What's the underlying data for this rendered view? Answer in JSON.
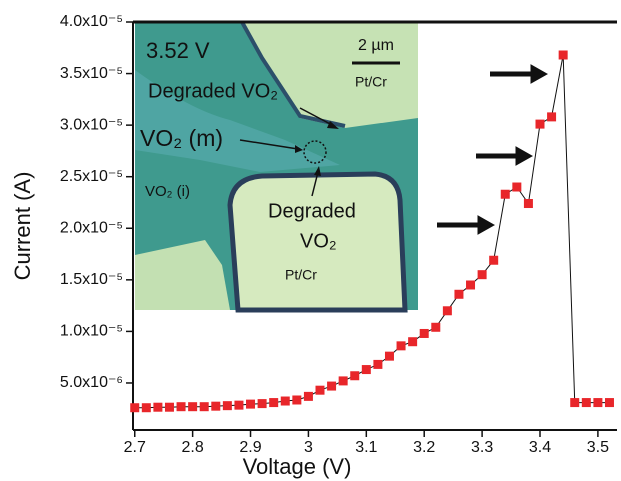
{
  "chart_data": {
    "type": "scatter",
    "x_label": "Voltage (V)",
    "y_label": "Current (A)",
    "x": [
      2.7,
      2.72,
      2.74,
      2.76,
      2.78,
      2.8,
      2.82,
      2.84,
      2.86,
      2.88,
      2.9,
      2.92,
      2.94,
      2.96,
      2.98,
      3.0,
      3.02,
      3.04,
      3.06,
      3.08,
      3.1,
      3.12,
      3.14,
      3.16,
      3.18,
      3.2,
      3.22,
      3.24,
      3.26,
      3.28,
      3.3,
      3.32,
      3.34,
      3.36,
      3.38,
      3.4,
      3.42,
      3.44,
      3.46,
      3.48,
      3.5,
      3.52
    ],
    "values": [
      2.6e-06,
      2.6e-06,
      2.65e-06,
      2.65e-06,
      2.7e-06,
      2.7e-06,
      2.7e-06,
      2.75e-06,
      2.8e-06,
      2.85e-06,
      2.95e-06,
      3e-06,
      3.1e-06,
      3.25e-06,
      3.35e-06,
      3.7e-06,
      4.3e-06,
      4.7e-06,
      5.2e-06,
      5.7e-06,
      6.3e-06,
      6.8e-06,
      7.6e-06,
      8.6e-06,
      9e-06,
      9.8e-06,
      1.04e-05,
      1.2e-05,
      1.36e-05,
      1.45e-05,
      1.55e-05,
      1.69e-05,
      2.33e-05,
      2.4e-05,
      2.24e-05,
      3.01e-05,
      3.08e-05,
      3.68e-05,
      3.1e-06,
      3.1e-06,
      3.1e-06,
      3.1e-06
    ],
    "color": "#e8262a",
    "line_color": "#111111",
    "xlim": [
      2.697,
      3.533
    ],
    "ylim": [
      4.4e-07,
      4e-05
    ],
    "xticks": [
      2.7,
      2.8,
      2.9,
      3.0,
      3.1,
      3.2,
      3.3,
      3.4,
      3.5
    ],
    "yticks": [
      {
        "value": 5e-06,
        "label": "5.0x10⁻⁶"
      },
      {
        "value": 1e-05,
        "label": "1.0x10⁻⁵"
      },
      {
        "value": 1.5e-05,
        "label": "1.5x10⁻⁵"
      },
      {
        "value": 2e-05,
        "label": "2.0x10⁻⁵"
      },
      {
        "value": 2.5e-05,
        "label": "2.5x10⁻⁵"
      },
      {
        "value": 3e-05,
        "label": "3.0x10⁻⁵"
      },
      {
        "value": 3.5e-05,
        "label": "3.5x10⁻⁵"
      },
      {
        "value": 4e-05,
        "label": "4.0x10⁻⁵"
      }
    ],
    "annotations": [
      "3.52 V",
      "2 µm",
      "Degraded VO₂",
      "Pt/Cr",
      "VO₂ (m)",
      "VO₂ (i)",
      "Degraded",
      "VO₂",
      "Pt/Cr"
    ]
  }
}
